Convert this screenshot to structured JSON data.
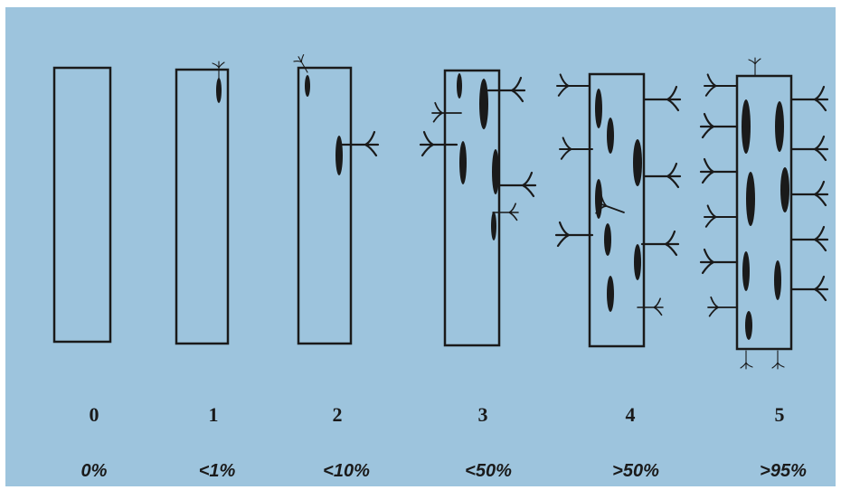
{
  "stages": [
    {
      "rating": "0",
      "coverage": "0%"
    },
    {
      "rating": "1",
      "coverage": "<1%"
    },
    {
      "rating": "2",
      "coverage": "<10%"
    },
    {
      "rating": "3",
      "coverage": "<50%"
    },
    {
      "rating": "4",
      "coverage": ">50%"
    },
    {
      "rating": "5",
      "coverage": ">95%"
    }
  ]
}
